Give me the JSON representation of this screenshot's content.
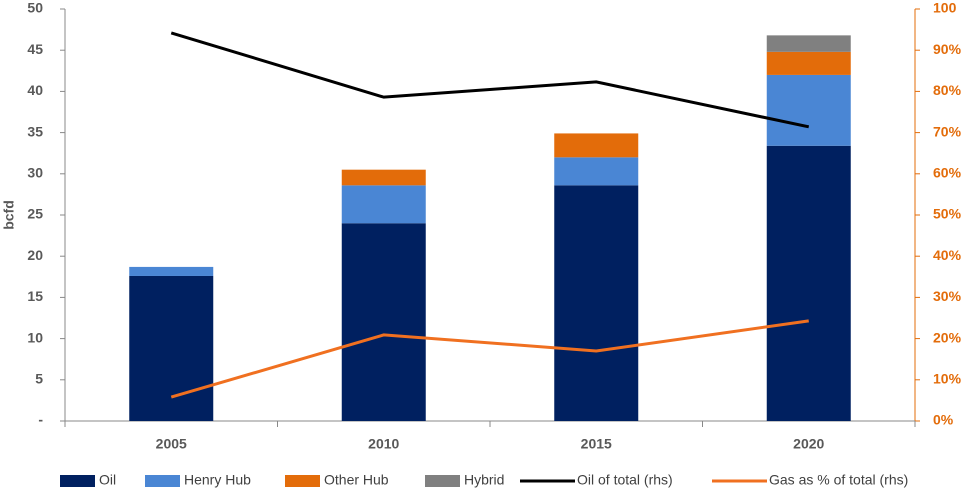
{
  "chart_data": {
    "type": "bar",
    "stacked": true,
    "y_label": "bcfd",
    "categories": [
      "2005",
      "2010",
      "2015",
      "2020"
    ],
    "series": [
      {
        "name": "Oil",
        "color": "#002060",
        "values": [
          17.6,
          24.0,
          28.6,
          33.4
        ]
      },
      {
        "name": "Henry Hub",
        "color": "#4a86d4",
        "values": [
          1.1,
          4.6,
          3.4,
          8.6
        ]
      },
      {
        "name": "Other Hub",
        "color": "#e36c0a",
        "values": [
          0,
          1.9,
          2.9,
          2.8
        ]
      },
      {
        "name": "Hybrid",
        "color": "#808080",
        "values": [
          0,
          0,
          0,
          2.0
        ]
      },
      {
        "name": "Oil of total (rhs)",
        "type": "line",
        "axis": "y2",
        "color": "#000000",
        "values": [
          94.2,
          78.6,
          82.3,
          71.4
        ]
      },
      {
        "name": "Gas as % of total (rhs)",
        "type": "line",
        "axis": "y2",
        "color": "#f07020",
        "values": [
          5.8,
          20.9,
          17.0,
          24.3
        ]
      }
    ],
    "ylim": [
      0,
      50
    ],
    "yticks": [
      {
        "value": 0,
        "label": "-"
      },
      5,
      10,
      15,
      20,
      25,
      30,
      35,
      40,
      45,
      50
    ],
    "y2lim": [
      0,
      100
    ],
    "y2ticks": [
      {
        "value": 0,
        "label": "0%"
      },
      {
        "value": 10,
        "label": "10%"
      },
      {
        "value": 20,
        "label": "20%"
      },
      {
        "value": 30,
        "label": "30%"
      },
      {
        "value": 40,
        "label": "40%"
      },
      {
        "value": 50,
        "label": "50%"
      },
      {
        "value": 60,
        "label": "60%"
      },
      {
        "value": 70,
        "label": "70%"
      },
      {
        "value": 80,
        "label": "80%"
      },
      {
        "value": 90,
        "label": "90%"
      },
      100
    ],
    "grid": false,
    "legend": "bottom"
  }
}
